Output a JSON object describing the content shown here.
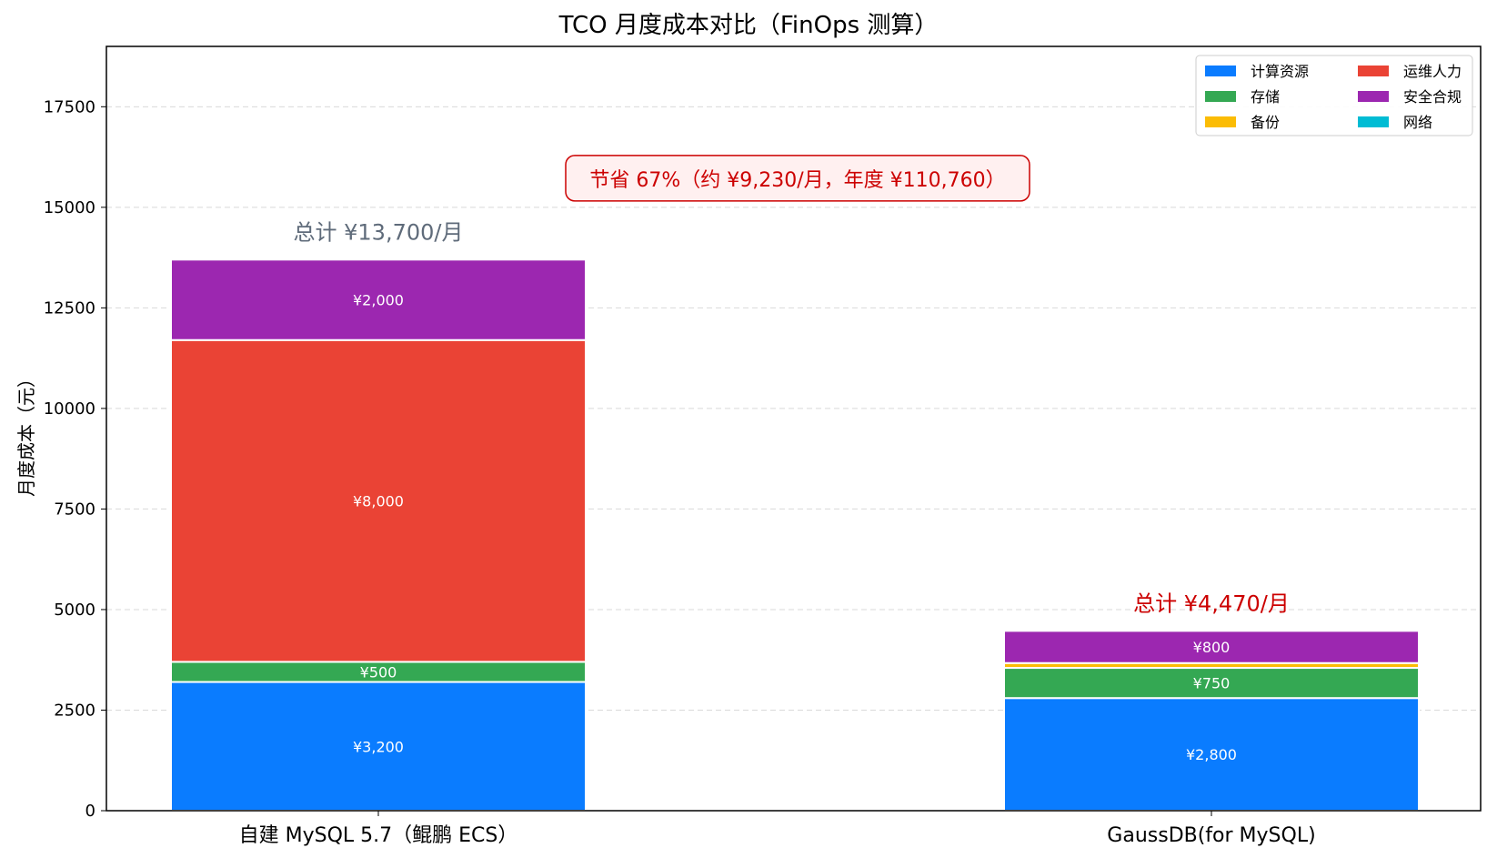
{
  "chart_data": {
    "type": "bar",
    "stacked": true,
    "title": "TCO 月度成本对比（FinOps 测算）",
    "xlabel": "",
    "ylabel": "月度成本（元）",
    "ylim": [
      0,
      19000
    ],
    "yticks": [
      0,
      2500,
      5000,
      7500,
      10000,
      12500,
      15000,
      17500
    ],
    "grid": true,
    "legend_position": "top-right",
    "categories": [
      "自建 MySQL 5.7（鲲鹏 ECS）",
      "GaussDB(for MySQL)"
    ],
    "series": [
      {
        "name": "计算资源",
        "color": "#0a7cff",
        "values": [
          3200,
          2800
        ],
        "labels": [
          "¥3,200",
          "¥2,800"
        ]
      },
      {
        "name": "存储",
        "color": "#34a853",
        "values": [
          500,
          750
        ],
        "labels": [
          "¥500",
          "¥750"
        ]
      },
      {
        "name": "备份",
        "color": "#fbbc05",
        "values": [
          0,
          120
        ],
        "labels": [
          "",
          ""
        ]
      },
      {
        "name": "运维人力",
        "color": "#ea4335",
        "values": [
          8000,
          0
        ],
        "labels": [
          "¥8,000",
          ""
        ]
      },
      {
        "name": "安全合规",
        "color": "#9c27b0",
        "values": [
          2000,
          800
        ],
        "labels": [
          "¥2,000",
          "¥800"
        ]
      },
      {
        "name": "网络",
        "color": "#00bcd4",
        "values": [
          0,
          0
        ],
        "labels": [
          "",
          ""
        ]
      }
    ],
    "totals": [
      {
        "text": "总计 ¥13,700/月",
        "color": "#5f6b7a"
      },
      {
        "text": "总计 ¥4,470/月",
        "color": "#cc0000"
      }
    ],
    "annotation": {
      "text": "节省 67%（约 ¥9,230/月，年度 ¥110,760）",
      "color": "#cc0000",
      "border": "#cc0000",
      "fill": "#fff0f0",
      "y": 15700
    }
  }
}
